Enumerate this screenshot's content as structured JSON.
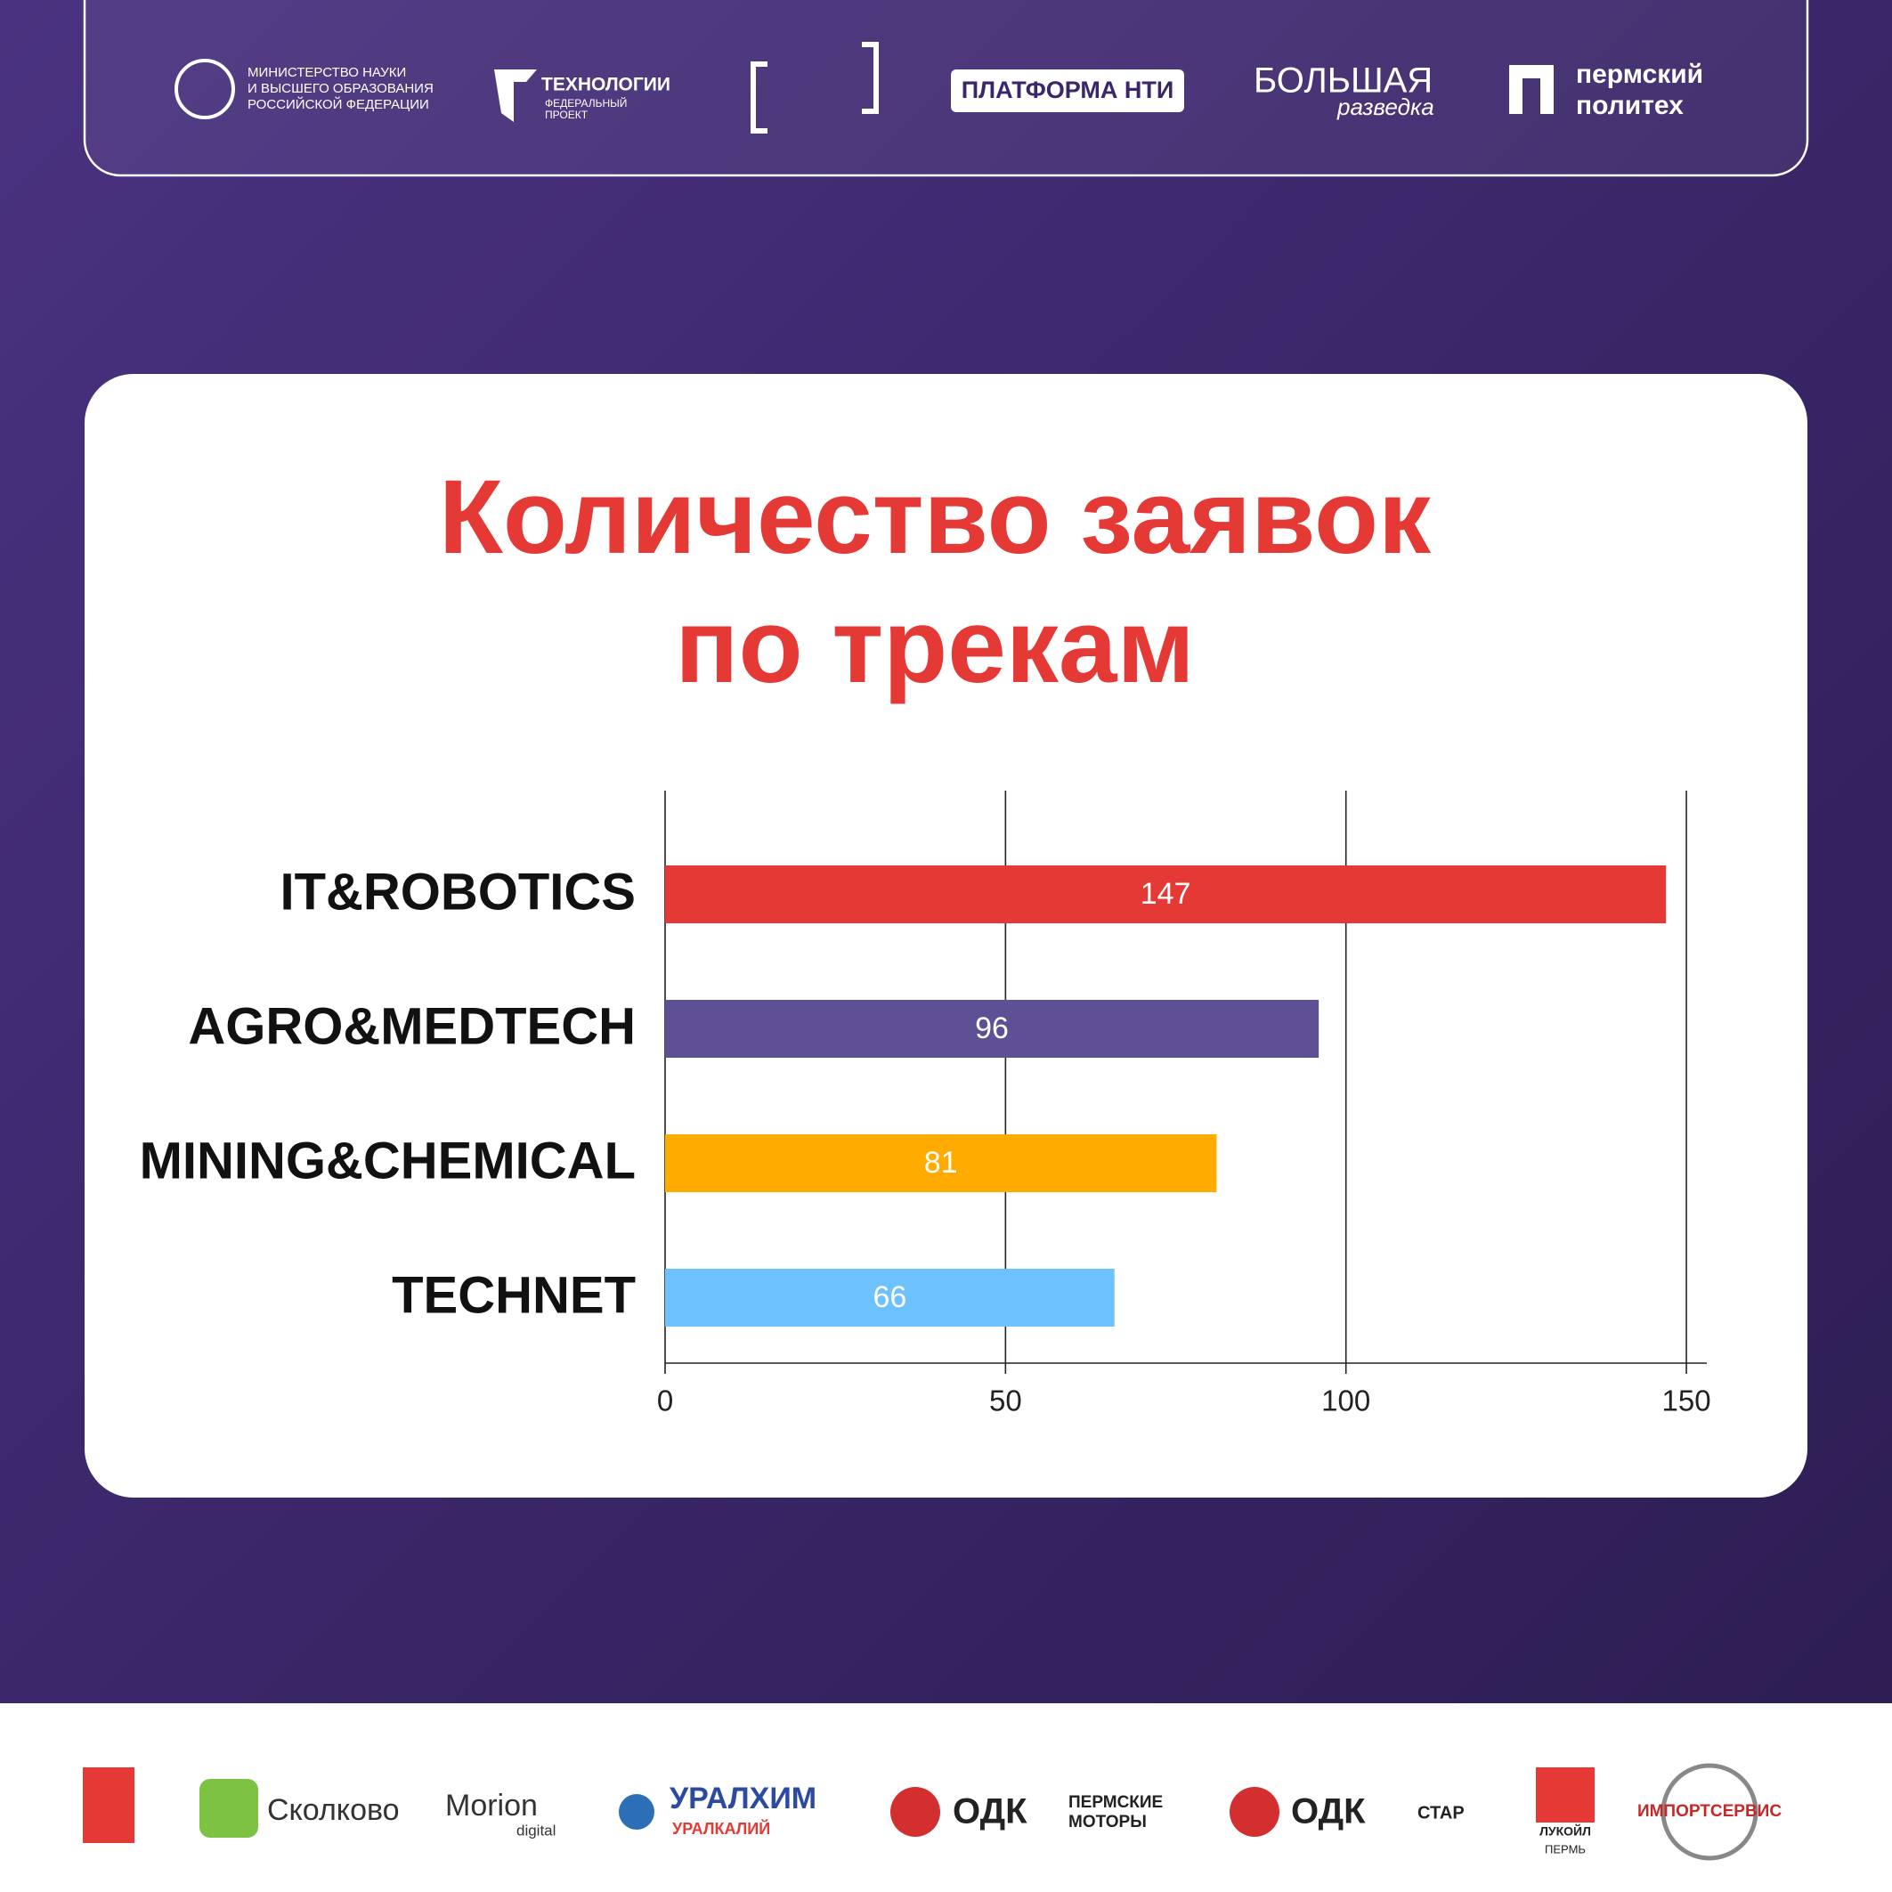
{
  "chart_data": {
    "type": "bar",
    "orientation": "horizontal",
    "title": [
      "Количество заявок",
      "по трекам"
    ],
    "categories": [
      "IT&ROBOTICS",
      "AGRO&MEDTECH",
      "MINING&CHEMICAL",
      "TECHNET"
    ],
    "values": [
      147,
      96,
      81,
      66
    ],
    "colors": [
      "#e53935",
      "#5f5095",
      "#ffab00",
      "#6ec1ff"
    ],
    "xlim": [
      0,
      153
    ],
    "xticks": [
      0,
      50,
      100,
      150
    ],
    "grid": true
  },
  "header_logos": [
    "МИНИСТЕРСТВО НАУКИ",
    "И ВЫСШЕГО ОБРАЗОВАНИЯ",
    "РОССИЙСКОЙ ФЕДЕРАЦИИ",
    "ТЕХНОЛОГИИ",
    "ФЕДЕРАЛЬНЫЙ",
    "ПРОЕКТ",
    "ПЛАТФОРМА НТИ",
    "БОЛЬШАЯ",
    "разведка",
    "пермский",
    "политех"
  ],
  "footer_logos": [
    "Сколково",
    "Morion",
    "digital",
    "УРАЛХИМ",
    "УРАЛКАЛИЙ",
    "ОДК",
    "ПЕРМСКИЕ",
    "МОТОРЫ",
    "ОДК",
    "СТАР",
    "ЛУКОЙЛ",
    "ПЕРМЬ",
    "ИМПОРТСЕРВИС"
  ]
}
